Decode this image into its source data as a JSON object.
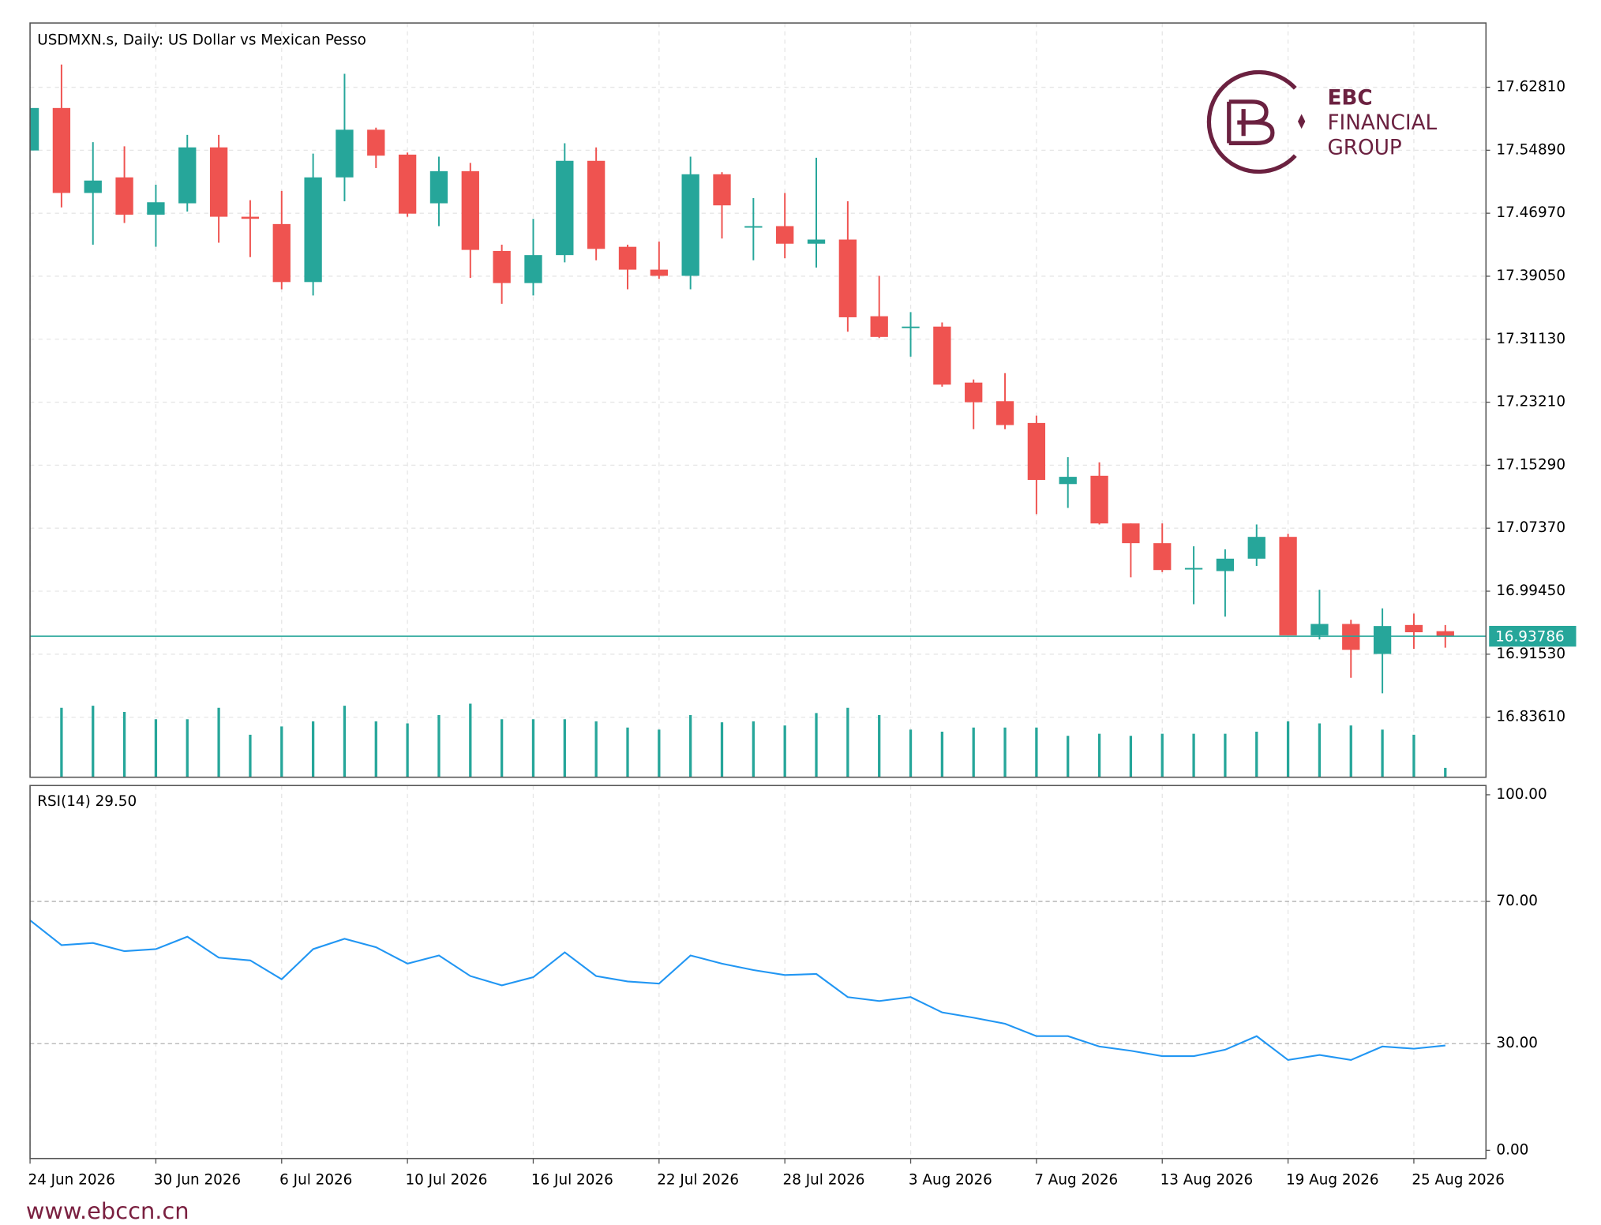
{
  "chart_data": [
    {
      "type": "candlestick",
      "title": "USDMXN.s, Daily:  US Dollar vs Mexican Pesso",
      "categories": [
        "24 Jun 2026",
        null,
        null,
        null,
        "30 Jun 2026",
        null,
        null,
        null,
        "6 Jul 2026",
        null,
        null,
        null,
        "10 Jul 2026",
        null,
        null,
        null,
        "16 Jul 2026",
        null,
        null,
        null,
        "22 Jul 2026",
        null,
        null,
        null,
        "28 Jul 2026",
        null,
        null,
        null,
        "3 Aug 2026",
        null,
        null,
        null,
        "7 Aug 2026",
        null,
        null,
        null,
        "13 Aug 2026",
        null,
        null,
        null,
        "19 Aug 2026",
        null,
        null,
        null,
        "25 Aug 2026",
        null
      ],
      "open": [
        17.5486,
        17.602,
        17.4952,
        17.5148,
        17.4679,
        17.4822,
        17.5525,
        17.4653,
        17.4561,
        17.3832,
        17.5148,
        17.5747,
        17.5434,
        17.4822,
        17.5226,
        17.4223,
        17.3819,
        17.4171,
        17.5356,
        17.4275,
        17.3988,
        17.391,
        17.5187,
        17.4522,
        17.4535,
        17.4314,
        17.4366,
        17.3402,
        17.3259,
        17.3272,
        17.2568,
        17.2334,
        17.206,
        17.1292,
        17.1396,
        17.0797,
        17.0549,
        17.0224,
        17.0198,
        17.0354,
        17.0628,
        16.939,
        16.9533,
        16.9156,
        16.952,
        16.9442
      ],
      "high": [
        17.602,
        17.6567,
        17.559,
        17.5538,
        17.5056,
        17.5682,
        17.5682,
        17.4861,
        17.4978,
        17.5447,
        17.645,
        17.5773,
        17.546,
        17.5408,
        17.533,
        17.4301,
        17.4627,
        17.5577,
        17.5525,
        17.4301,
        17.434,
        17.5408,
        17.5213,
        17.4887,
        17.4952,
        17.5395,
        17.4848,
        17.391,
        17.3454,
        17.3324,
        17.2607,
        17.2686,
        17.2152,
        17.1631,
        17.1565,
        17.0797,
        17.0797,
        17.051,
        17.0471,
        17.0784,
        17.0667,
        16.9963,
        16.9585,
        16.9729,
        16.9664,
        16.952
      ],
      "low": [
        17.5486,
        17.477,
        17.4301,
        17.4574,
        17.4275,
        17.4718,
        17.4327,
        17.4145,
        17.3741,
        17.3663,
        17.4848,
        17.5265,
        17.4653,
        17.4535,
        17.3884,
        17.3558,
        17.3663,
        17.4079,
        17.4106,
        17.3741,
        17.3871,
        17.3741,
        17.4379,
        17.4106,
        17.4132,
        17.4014,
        17.3207,
        17.3128,
        17.2894,
        17.2516,
        17.1982,
        17.1982,
        17.0914,
        17.0992,
        17.0784,
        17.012,
        17.0185,
        16.9781,
        16.9625,
        17.0263,
        16.939,
        16.9338,
        16.8856,
        16.8661,
        16.9221,
        16.9234
      ],
      "close": [
        17.602,
        17.4952,
        17.5108,
        17.4679,
        17.4835,
        17.5525,
        17.4653,
        17.4627,
        17.3832,
        17.5148,
        17.5747,
        17.5421,
        17.4692,
        17.5226,
        17.4236,
        17.3819,
        17.4171,
        17.5356,
        17.4249,
        17.3988,
        17.391,
        17.5187,
        17.4796,
        17.4535,
        17.4314,
        17.4366,
        17.3389,
        17.3142,
        17.3272,
        17.2542,
        17.2321,
        17.2034,
        17.1344,
        17.1383,
        17.0797,
        17.0549,
        17.0211,
        17.0237,
        17.0354,
        17.0628,
        16.939,
        16.9533,
        16.9208,
        16.9507,
        16.9429,
        16.93786
      ],
      "volume": [
        null,
        67,
        69,
        63,
        56,
        56,
        67,
        41,
        49,
        54,
        69,
        54,
        52,
        60,
        71,
        56,
        56,
        56,
        54,
        48,
        46,
        60,
        53,
        54,
        50,
        62,
        67,
        60,
        46,
        44,
        48,
        48,
        48,
        40,
        42,
        40,
        42,
        42,
        42,
        44,
        54,
        52,
        50,
        46,
        41,
        9
      ],
      "vlim": [
        0,
        728
      ],
      "up_color": "#26a69a",
      "down_color": "#ef5350",
      "volume_color": "#26a69a",
      "ylim": [
        16.7606,
        17.7089
      ],
      "yticks": [
        {
          "value": 17.6281,
          "label": "17.62810"
        },
        {
          "value": 17.5489,
          "label": "17.54890"
        },
        {
          "value": 17.4697,
          "label": "17.46970"
        },
        {
          "value": 17.3905,
          "label": "17.39050"
        },
        {
          "value": 17.3113,
          "label": "17.31130"
        },
        {
          "value": 17.2321,
          "label": "17.23210"
        },
        {
          "value": 17.1529,
          "label": "17.15290"
        },
        {
          "value": 17.0737,
          "label": "17.07370"
        },
        {
          "value": 16.9945,
          "label": "16.99450"
        },
        {
          "value": 16.9153,
          "label": "16.91530"
        },
        {
          "value": 16.8361,
          "label": "16.83610"
        }
      ],
      "grid": true
    },
    {
      "type": "line",
      "title": "RSI(14) 29.50",
      "color": "#2196f3",
      "values": [
        64.7,
        57.7,
        58.3,
        56.0,
        56.6,
        60.1,
        54.2,
        53.4,
        48.1,
        56.6,
        59.5,
        57.1,
        52.5,
        54.8,
        49.0,
        46.4,
        48.7,
        55.7,
        49.0,
        47.5,
        46.9,
        54.8,
        52.5,
        50.7,
        49.3,
        49.6,
        43.1,
        42.0,
        43.1,
        38.8,
        37.3,
        35.6,
        32.1,
        32.1,
        29.2,
        28.0,
        26.5,
        26.5,
        28.3,
        32.1,
        25.4,
        26.8,
        25.4,
        29.2,
        28.6,
        29.5
      ],
      "ylim": [
        -2.3,
        102.6
      ],
      "yticks": [
        {
          "value": 100,
          "label": "100.00"
        },
        {
          "value": 70,
          "label": "70.00"
        },
        {
          "value": 30,
          "label": "30.00"
        },
        {
          "value": 0,
          "label": "0.00"
        }
      ]
    }
  ],
  "logo": {
    "lines": [
      "EBC",
      "FINANCIAL",
      "GROUP"
    ]
  },
  "footer": "www.ebccn.cn"
}
